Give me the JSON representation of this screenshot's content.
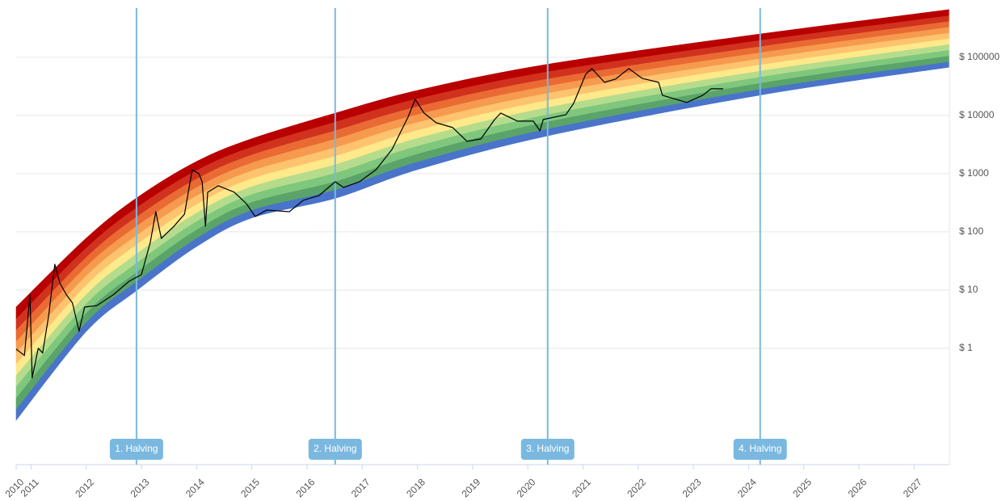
{
  "chart_data": {
    "type": "line",
    "log_y": true,
    "grid": true,
    "xlim": [
      2010.73,
      2027.64
    ],
    "ylim": [
      0.01,
      700000
    ],
    "xticks": [
      {
        "value": 2010.73,
        "label": "2010"
      },
      2011,
      2012,
      2013,
      2014,
      2015,
      2016,
      2017,
      2018,
      2019,
      2020,
      2021,
      2022,
      2023,
      2024,
      2025,
      2026,
      2027
    ],
    "yticks": [
      {
        "value": 1,
        "label": "$ 1"
      },
      {
        "value": 10,
        "label": "$ 10"
      },
      {
        "value": 100,
        "label": "$ 100"
      },
      {
        "value": 1000,
        "label": "$ 1000"
      },
      {
        "value": 10000,
        "label": "$ 10000"
      },
      {
        "value": 100000,
        "label": "$ 100000"
      }
    ],
    "x": [
      2010.73,
      2010.88,
      2010.98,
      2011.02,
      2011.13,
      2011.21,
      2011.32,
      2011.43,
      2011.52,
      2011.64,
      2011.75,
      2011.87,
      2011.97,
      2012.19,
      2012.49,
      2012.78,
      2013.0,
      2013.16,
      2013.26,
      2013.36,
      2013.59,
      2013.78,
      2013.92,
      2014.04,
      2014.1,
      2014.16,
      2014.2,
      2014.39,
      2014.68,
      2014.9,
      2015.06,
      2015.27,
      2015.68,
      2015.93,
      2016.22,
      2016.51,
      2016.66,
      2016.95,
      2017.25,
      2017.54,
      2017.83,
      2017.96,
      2018.12,
      2018.34,
      2018.64,
      2018.9,
      2019.15,
      2019.4,
      2019.51,
      2019.81,
      2020.1,
      2020.22,
      2020.28,
      2020.69,
      2020.83,
      2021.05,
      2021.16,
      2021.39,
      2021.59,
      2021.83,
      2022.07,
      2022.37,
      2022.44,
      2022.88,
      2023.17,
      2023.32,
      2023.54
    ],
    "series": [
      {
        "color": "#000000",
        "values": [
          0.97,
          0.75,
          8.3,
          0.31,
          1.0,
          0.83,
          3.7,
          27.8,
          13.3,
          8.3,
          6.0,
          1.96,
          5.1,
          5.4,
          8.3,
          14.2,
          18.4,
          66,
          222,
          77,
          125,
          202,
          1170,
          1000,
          726,
          125,
          480,
          620,
          480,
          306,
          184,
          237,
          222,
          348,
          422,
          726,
          581,
          726,
          1170,
          2610,
          9380,
          18970,
          11000,
          7500,
          6190,
          3590,
          3960,
          8530,
          11000,
          8000,
          8000,
          5450,
          8530,
          10300,
          16100,
          51100,
          64000,
          37100,
          42200,
          64000,
          43500,
          37100,
          22200,
          16700,
          22200,
          28700,
          28700
        ]
      }
    ],
    "rainbow": {
      "x": [
        2010.73,
        2012,
        2012.91,
        2014,
        2015,
        2016.52,
        2018,
        2020.36,
        2024.21,
        2027.64
      ],
      "lower": [
        0.058,
        1.95,
        9.8,
        56,
        174,
        380,
        1175,
        4470,
        22400,
        67600
      ],
      "upper": [
        5.1,
        78,
        380,
        1620,
        3980,
        11000,
        26900,
        75900,
        251000,
        661000
      ],
      "colors": [
        "#4a74c9",
        "#5aa469",
        "#7fc77d",
        "#b5dc8c",
        "#fee98b",
        "#fdc36f",
        "#f59a4e",
        "#ea6a33",
        "#d0321e",
        "#b80000"
      ]
    },
    "annotation_color": "#7ab8e0",
    "annotations": [
      {
        "x": 2012.91,
        "label": "1. Halving"
      },
      {
        "x": 2016.51,
        "label": "2. Halving"
      },
      {
        "x": 2020.36,
        "label": "3. Halving"
      },
      {
        "x": 2024.21,
        "label": "4. Halving"
      }
    ]
  }
}
